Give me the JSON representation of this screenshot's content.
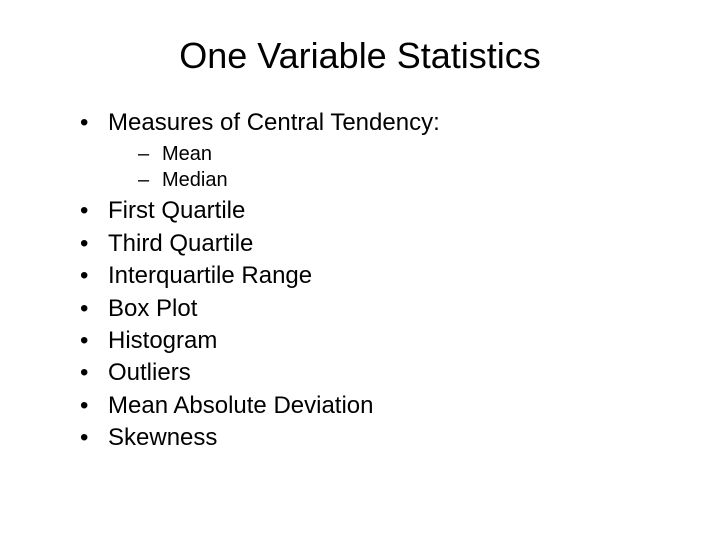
{
  "title": "One Variable Statistics",
  "items": [
    {
      "label": "Measures of Central Tendency:",
      "subitems": [
        "Mean",
        "Median"
      ]
    },
    {
      "label": "First Quartile"
    },
    {
      "label": "Third Quartile"
    },
    {
      "label": "Interquartile Range"
    },
    {
      "label": "Box Plot"
    },
    {
      "label": "Histogram"
    },
    {
      "label": "Outliers"
    },
    {
      "label": "Mean Absolute Deviation"
    },
    {
      "label": "Skewness"
    }
  ],
  "styling": {
    "background_color": "#ffffff",
    "text_color": "#000000",
    "title_fontsize": 36,
    "body_fontsize": 24,
    "sub_fontsize": 20,
    "font_family": "Arial"
  }
}
